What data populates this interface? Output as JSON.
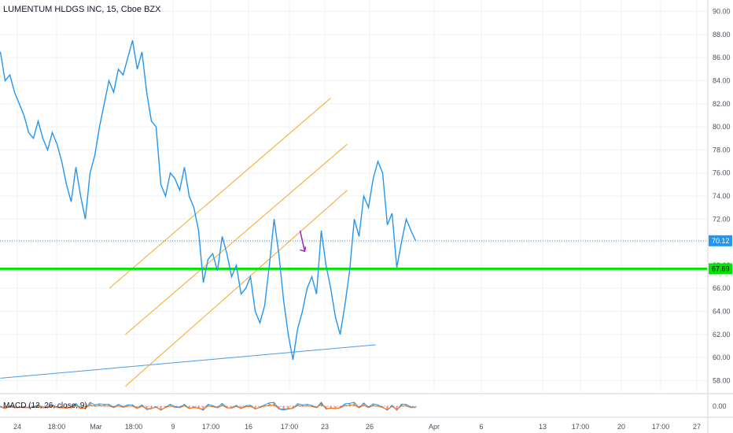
{
  "header": {
    "title": "LUMENTUM HLDGS INC, 15, Cboe BZX"
  },
  "macd": {
    "label": "MACD (12, 26, close, 9)",
    "axis_label": "0.00"
  },
  "colors": {
    "price_line": "#2196f3",
    "support_line": "#00e600",
    "channel_lines": "#f5a623",
    "trend_line": "#4c9be8",
    "arrow": "#9c27b0",
    "last_price_tag": "#2196f3",
    "support_tag": "#00e600"
  },
  "chart_data": {
    "type": "line",
    "x_labels": [
      "24",
      "18:00",
      "Mar",
      "18:00",
      "9",
      "17:00",
      "16",
      "17:00",
      "23",
      "26",
      "Apr",
      "6",
      "13",
      "17:00",
      "20",
      "17:00",
      "27"
    ],
    "y_ticks": [
      "58.00",
      "60.00",
      "62.00",
      "64.00",
      "66.00",
      "68.00",
      "70.00",
      "72.00",
      "74.00",
      "76.00",
      "78.00",
      "80.00",
      "82.00",
      "84.00",
      "86.00",
      "88.00",
      "90.00"
    ],
    "ylim": [
      57,
      91
    ],
    "series": [
      {
        "values": [
          86.5,
          84.0,
          84.5,
          83.0,
          82.0,
          81.0,
          79.5,
          79.0,
          80.5,
          79.0,
          78.0,
          79.5,
          78.5,
          77.0,
          75.0,
          73.5,
          76.5,
          74.0,
          72.0,
          76.0,
          77.5,
          80.0,
          82.0,
          84.0,
          83.0,
          85.0,
          84.5,
          86.0,
          87.5,
          85.0,
          86.5,
          83.0,
          80.5,
          80.0,
          75.0,
          74.0,
          76.0,
          75.5,
          74.5,
          76.5,
          74.0,
          73.0,
          71.0,
          66.5,
          68.5,
          69.0,
          67.5,
          70.5,
          69.0,
          67.0,
          68.0,
          65.5,
          66.0,
          67.0,
          64.0,
          63.0,
          64.5,
          68.0,
          72.0,
          69.0,
          65.0,
          62.0,
          59.8,
          62.5,
          64.0,
          66.0,
          67.0,
          65.5,
          71.0,
          68.0,
          66.0,
          63.5,
          62.0,
          64.5,
          67.5,
          72.0,
          70.5,
          74.0,
          73.0,
          75.5,
          77.0,
          76.0,
          71.5,
          72.5,
          67.8,
          70.0,
          72.0,
          71.0,
          70.12
        ],
        "last_value": "70.12"
      }
    ],
    "annotations": {
      "horizontal_level": {
        "value": 67.69,
        "label": "67.69"
      },
      "last_price_label": "70.12",
      "channel_upper": {
        "x0": 23.1,
        "y0": 66.0,
        "x1": 70.0,
        "y1": 82.5
      },
      "channel_middle": {
        "x0": 26.5,
        "y0": 62.0,
        "x1": 73.5,
        "y1": 78.5
      },
      "channel_lower": {
        "x0": 26.5,
        "y0": 57.5,
        "x1": 73.5,
        "y1": 74.5
      },
      "trendline": {
        "x0": 0.0,
        "y0": 58.2,
        "x1": 79.5,
        "y1": 61.1
      },
      "arrow_from": {
        "x": 63.5,
        "y": 71.0
      },
      "arrow_to": {
        "x": 64.5,
        "y": 69.2
      }
    },
    "grid": true,
    "axis_position": "right"
  }
}
